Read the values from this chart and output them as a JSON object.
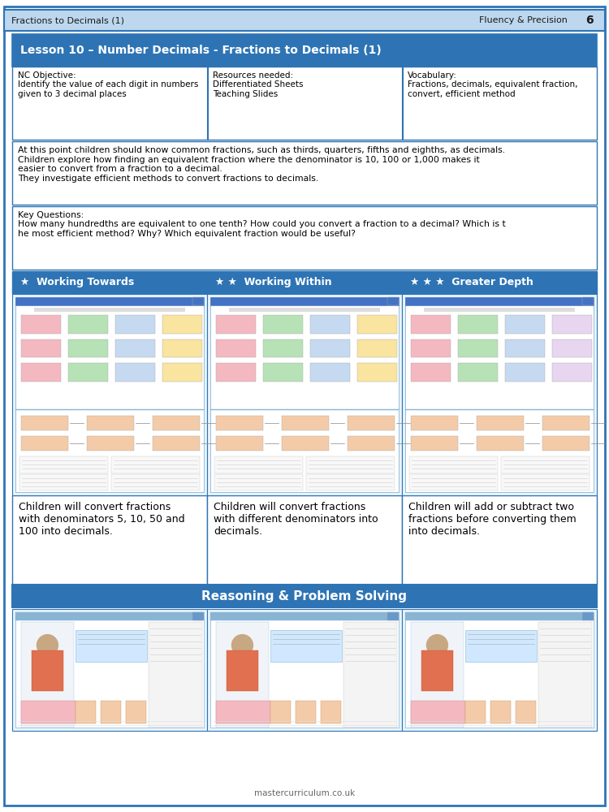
{
  "title_bar": "Fractions to Decimals (1)",
  "title_bar_right": "Fluency & Precision",
  "title_bar_page": "6",
  "lesson_title": "Lesson 10 – Number Decimals - Fractions to Decimals (1)",
  "nc_objective_label": "NC Objective:",
  "nc_objective": "Identify the value of each digit in numbers\ngiven to 3 decimal places",
  "resources_label": "Resources needed:",
  "resources": "Differentiated Sheets\nTeaching Slides",
  "vocabulary_label": "Vocabulary:",
  "vocabulary": "Fractions, decimals, equivalent fraction,\nconvert, efficient method",
  "description": "At this point children should know common fractions, such as thirds, quarters, fifths and eighths, as decimals.\nChildren explore how finding an equivalent fraction where the denominator is 10, 100 or 1,000 makes it\neasier to convert from a fraction to a decimal.\nThey investigate efficient methods to convert fractions to decimals.",
  "key_questions_label": "Key Questions:",
  "key_questions": "How many hundredths are equivalent to one tenth? How could you convert a fraction to a decimal? Which is t\nhe most efficient method? Why? Which equivalent fraction would be useful?",
  "col1_stars": 1,
  "col1_title": "Working Towards",
  "col2_stars": 2,
  "col2_title": "Working Within",
  "col3_stars": 3,
  "col3_title": "Greater Depth",
  "col1_description": "Children will convert fractions\nwith denominators 5, 10, 50 and\n100 into decimals.",
  "col2_description": "Children will convert fractions\nwith different denominators into\ndecimals.",
  "col3_description": "Children will add or subtract two\nfractions before converting them\ninto decimals.",
  "reasoning_title": "Reasoning & Problem Solving",
  "footer": "mastercurriculum.co.uk",
  "bg_color": "#ffffff",
  "outer_border_color": "#2e74b5",
  "header_bg": "#bdd7ee",
  "lesson_header_bg": "#2e74b5",
  "lesson_header_text": "#ffffff",
  "table_border": "#2e74b5",
  "col_header_bg": "#2e74b5",
  "col_header_text": "#ffffff",
  "reasoning_bg": "#2e74b5",
  "reasoning_text": "#ffffff",
  "worksheet_img_bg": "#dceef8",
  "star_color": "#ffffff",
  "cell_pink": "#f4b8c1",
  "cell_green": "#b6e2b6",
  "cell_blue": "#c5d9f0",
  "cell_yellow": "#f9e4a0",
  "cell_purple": "#e8d5f0",
  "cell_peach": "#f4cba8"
}
